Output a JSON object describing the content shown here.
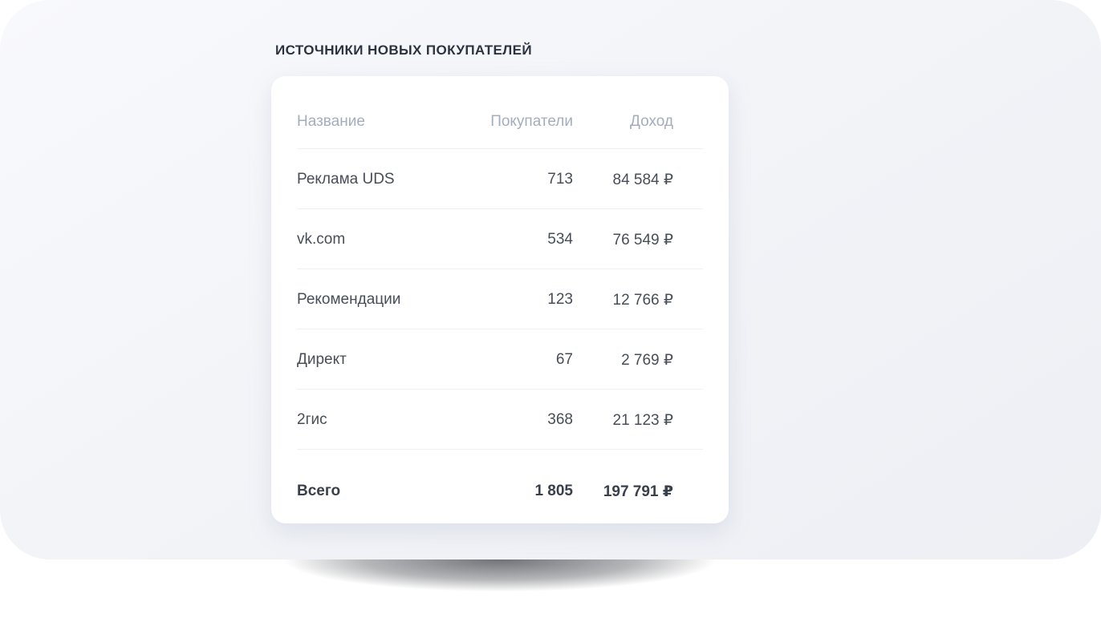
{
  "widget": {
    "title": "ИСТОЧНИКИ НОВЫХ ПОКУПАТЕЛЕЙ"
  },
  "table": {
    "columns": {
      "name": "Название",
      "customers": "Покупатели",
      "income": "Доход"
    },
    "rows": [
      {
        "name": "Реклама UDS",
        "customers": "713",
        "income": "84 584 ₽"
      },
      {
        "name": "vk.com",
        "customers": "534",
        "income": "76 549 ₽"
      },
      {
        "name": "Рекомендации",
        "customers": "123",
        "income": "12 766 ₽"
      },
      {
        "name": "Директ",
        "customers": "67",
        "income": "2 769 ₽"
      },
      {
        "name": "2гис",
        "customers": "368",
        "income": "21 123 ₽"
      }
    ],
    "total": {
      "name": "Всего",
      "customers": "1 805",
      "income": "197 791 ₽"
    }
  },
  "chart_data": {
    "type": "table",
    "title": "ИСТОЧНИКИ НОВЫХ ПОКУПАТЕЛЕЙ",
    "columns": [
      "Название",
      "Покупатели",
      "Доход"
    ],
    "rows": [
      [
        "Реклама UDS",
        713,
        "84 584 ₽"
      ],
      [
        "vk.com",
        534,
        "76 549 ₽"
      ],
      [
        "Рекомендации",
        123,
        "12 766 ₽"
      ],
      [
        "Директ",
        67,
        "2 769 ₽"
      ],
      [
        "2гис",
        368,
        "21 123 ₽"
      ]
    ],
    "total_row": [
      "Всего",
      1805,
      "197 791 ₽"
    ]
  },
  "colors": {
    "panel_background": "#f1f3f7",
    "card_background": "#ffffff",
    "title_text": "#2d333e",
    "header_text": "#a4adbe",
    "cell_text": "#474e58",
    "total_text": "#39404c",
    "divider": "#eef0f4"
  }
}
